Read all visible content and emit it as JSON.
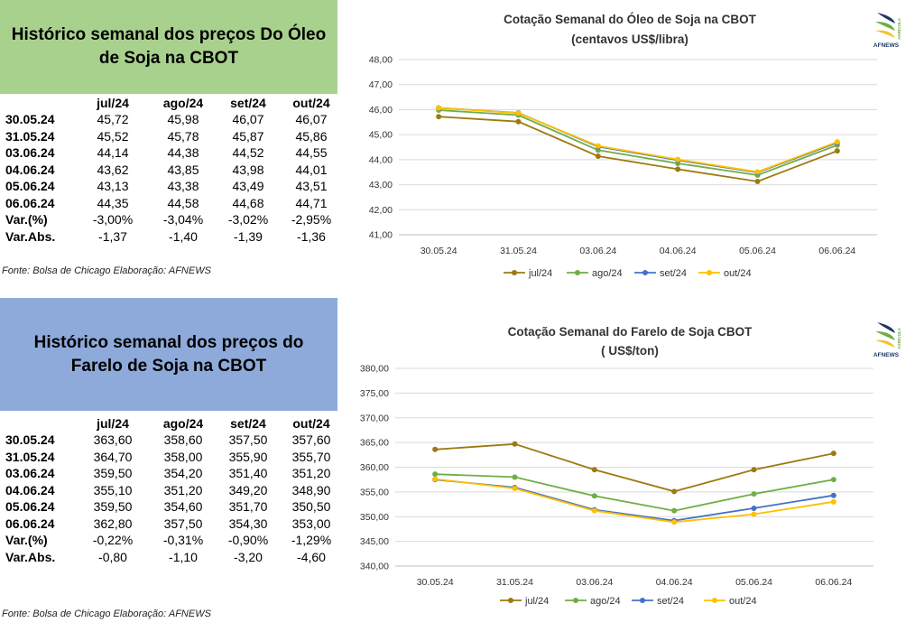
{
  "oil": {
    "title": "Histórico semanal dos preços Do Óleo de Soja na CBOT",
    "columns": [
      "jul/24",
      "ago/24",
      "set/24",
      "out/24"
    ],
    "rows": [
      {
        "label": "30.05.24",
        "values": [
          "45,72",
          "45,98",
          "46,07",
          "46,07"
        ]
      },
      {
        "label": "31.05.24",
        "values": [
          "45,52",
          "45,78",
          "45,87",
          "45,86"
        ]
      },
      {
        "label": "03.06.24",
        "values": [
          "44,14",
          "44,38",
          "44,52",
          "44,55"
        ]
      },
      {
        "label": "04.06.24",
        "values": [
          "43,62",
          "43,85",
          "43,98",
          "44,01"
        ]
      },
      {
        "label": "05.06.24",
        "values": [
          "43,13",
          "43,38",
          "43,49",
          "43,51"
        ]
      },
      {
        "label": "06.06.24",
        "values": [
          "44,35",
          "44,58",
          "44,68",
          "44,71"
        ]
      },
      {
        "label": "Var.(%)",
        "values": [
          "-3,00%",
          "-3,04%",
          "-3,02%",
          "-2,95%"
        ]
      },
      {
        "label": "Var.Abs.",
        "values": [
          "-1,37",
          "-1,40",
          "-1,39",
          "-1,36"
        ]
      }
    ],
    "source": "Fonte: Bolsa de Chicago Elaboração: AFNEWS"
  },
  "meal": {
    "title": "Histórico semanal dos preços do Farelo de Soja na CBOT",
    "columns": [
      "jul/24",
      "ago/24",
      "set/24",
      "out/24"
    ],
    "rows": [
      {
        "label": "30.05.24",
        "values": [
          "363,60",
          "358,60",
          "357,50",
          "357,60"
        ]
      },
      {
        "label": "31.05.24",
        "values": [
          "364,70",
          "358,00",
          "355,90",
          "355,70"
        ]
      },
      {
        "label": "03.06.24",
        "values": [
          "359,50",
          "354,20",
          "351,40",
          "351,20"
        ]
      },
      {
        "label": "04.06.24",
        "values": [
          "355,10",
          "351,20",
          "349,20",
          "348,90"
        ]
      },
      {
        "label": "05.06.24",
        "values": [
          "359,50",
          "354,60",
          "351,70",
          "350,50"
        ]
      },
      {
        "label": "06.06.24",
        "values": [
          "362,80",
          "357,50",
          "354,30",
          "353,00"
        ]
      },
      {
        "label": "Var.(%)",
        "values": [
          "-0,22%",
          "-0,31%",
          "-0,90%",
          "-1,29%"
        ]
      },
      {
        "label": "Var.Abs.",
        "values": [
          "-0,80",
          "-1,10",
          "-3,20",
          "-4,60"
        ]
      }
    ],
    "source": "Fonte: Bolsa de Chicago Elaboração: AFNEWS"
  },
  "logo": {
    "brand": "AFNEWS",
    "sub": "AGRÍCOLA",
    "colors": [
      "#f2c12e",
      "#70ad47",
      "#1f3864"
    ]
  },
  "chart_data": [
    {
      "type": "line",
      "title": "Cotação Semanal do Óleo de Soja na CBOT",
      "subtitle": "(centavos US$/libra)",
      "x": [
        "30.05.24",
        "31.05.24",
        "03.06.24",
        "04.06.24",
        "05.06.24",
        "06.06.24"
      ],
      "ylim": [
        41,
        48
      ],
      "yticks": [
        "41,00",
        "42,00",
        "43,00",
        "44,00",
        "45,00",
        "46,00",
        "47,00",
        "48,00"
      ],
      "grid": true,
      "legend": "bottom",
      "series": [
        {
          "name": "jul/24",
          "color": "#9c7a12",
          "values": [
            45.72,
            45.52,
            44.14,
            43.62,
            43.13,
            44.35
          ]
        },
        {
          "name": "ago/24",
          "color": "#70ad47",
          "values": [
            45.98,
            45.78,
            44.38,
            43.85,
            43.38,
            44.58
          ]
        },
        {
          "name": "set/24",
          "color": "#4472c4",
          "values": [
            46.07,
            45.87,
            44.52,
            43.98,
            43.49,
            44.68
          ]
        },
        {
          "name": "out/24",
          "color": "#ffc000",
          "values": [
            46.07,
            45.86,
            44.55,
            44.01,
            43.51,
            44.71
          ]
        }
      ]
    },
    {
      "type": "line",
      "title": "Cotação Semanal do Farelo de Soja CBOT",
      "subtitle": "( US$/ton)",
      "x": [
        "30.05.24",
        "31.05.24",
        "03.06.24",
        "04.06.24",
        "05.06.24",
        "06.06.24"
      ],
      "ylim": [
        340,
        380
      ],
      "yticks": [
        "340,00",
        "345,00",
        "350,00",
        "355,00",
        "360,00",
        "365,00",
        "370,00",
        "375,00",
        "380,00"
      ],
      "grid": true,
      "legend": "bottom",
      "series": [
        {
          "name": "jul/24",
          "color": "#9c7a12",
          "values": [
            363.6,
            364.7,
            359.5,
            355.1,
            359.5,
            362.8
          ]
        },
        {
          "name": "ago/24",
          "color": "#70ad47",
          "values": [
            358.6,
            358.0,
            354.2,
            351.2,
            354.6,
            357.5
          ]
        },
        {
          "name": "set/24",
          "color": "#4472c4",
          "values": [
            357.5,
            355.9,
            351.4,
            349.2,
            351.7,
            354.3
          ]
        },
        {
          "name": "out/24",
          "color": "#ffc000",
          "values": [
            357.6,
            355.7,
            351.2,
            348.9,
            350.5,
            353.0
          ]
        }
      ]
    }
  ]
}
